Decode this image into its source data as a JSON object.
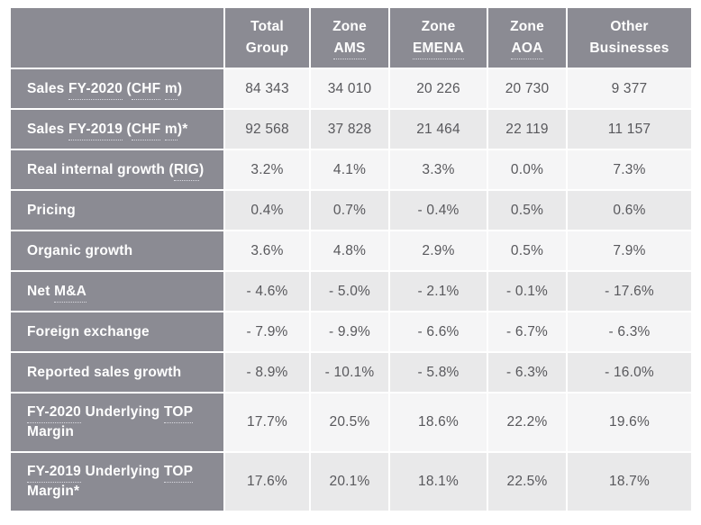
{
  "colors": {
    "header_bg": "#8b8b93",
    "row_light": "#f5f5f6",
    "row_dark": "#e9e9ea",
    "value_text": "#58585c",
    "label_text": "#ffffff",
    "page_bg": "#ffffff",
    "glossary_dots": "#d9d9e0"
  },
  "chart_data": {
    "type": "table",
    "columns": [
      {
        "label": "Total Group",
        "lines": [
          [
            {
              "text": "Total",
              "glossary": false
            }
          ],
          [
            {
              "text": "Group",
              "glossary": false
            }
          ]
        ]
      },
      {
        "label": "Zone AMS",
        "lines": [
          [
            {
              "text": "Zone",
              "glossary": false
            }
          ],
          [
            {
              "text": "AMS",
              "glossary": true
            }
          ]
        ]
      },
      {
        "label": "Zone EMENA",
        "lines": [
          [
            {
              "text": "Zone",
              "glossary": false
            }
          ],
          [
            {
              "text": "EMENA",
              "glossary": true
            }
          ]
        ]
      },
      {
        "label": "Zone AOA",
        "lines": [
          [
            {
              "text": "Zone",
              "glossary": false
            }
          ],
          [
            {
              "text": "AOA",
              "glossary": true
            }
          ]
        ]
      },
      {
        "label": "Other Businesses",
        "lines": [
          [
            {
              "text": "Other",
              "glossary": false
            }
          ],
          [
            {
              "text": "Businesses",
              "glossary": false
            }
          ]
        ]
      }
    ],
    "rows": [
      {
        "label": "Sales FY-2020 (CHF m)",
        "label_parts": [
          {
            "text": "Sales ",
            "glossary": false
          },
          {
            "text": "FY-2020",
            "glossary": true
          },
          {
            "text": " (",
            "glossary": false
          },
          {
            "text": "CHF",
            "glossary": true
          },
          {
            "text": " ",
            "glossary": false
          },
          {
            "text": "m",
            "glossary": true
          },
          {
            "text": ")",
            "glossary": false
          }
        ],
        "values": [
          "84 343",
          "34 010",
          "20 226",
          "20 730",
          "9 377"
        ]
      },
      {
        "label": "Sales FY-2019 (CHF m)*",
        "label_parts": [
          {
            "text": "Sales ",
            "glossary": false
          },
          {
            "text": "FY-2019",
            "glossary": true
          },
          {
            "text": " (",
            "glossary": false
          },
          {
            "text": "CHF",
            "glossary": true
          },
          {
            "text": " ",
            "glossary": false
          },
          {
            "text": "m",
            "glossary": true
          },
          {
            "text": ")*",
            "glossary": false
          }
        ],
        "values": [
          "92 568",
          "37 828",
          "21 464",
          "22 119",
          "11 157"
        ]
      },
      {
        "label": "Real internal growth (RIG)",
        "label_parts": [
          {
            "text": "Real internal growth (",
            "glossary": false
          },
          {
            "text": "RIG",
            "glossary": true
          },
          {
            "text": ")",
            "glossary": false
          }
        ],
        "values": [
          "3.2%",
          "4.1%",
          "3.3%",
          "0.0%",
          "7.3%"
        ]
      },
      {
        "label": "Pricing",
        "label_parts": [
          {
            "text": "Pricing",
            "glossary": false
          }
        ],
        "values": [
          "0.4%",
          "0.7%",
          "- 0.4%",
          "0.5%",
          "0.6%"
        ]
      },
      {
        "label": "Organic growth",
        "label_parts": [
          {
            "text": "Organic growth",
            "glossary": false
          }
        ],
        "values": [
          "3.6%",
          "4.8%",
          "2.9%",
          "0.5%",
          "7.9%"
        ]
      },
      {
        "label": "Net M&A",
        "label_parts": [
          {
            "text": "Net ",
            "glossary": false
          },
          {
            "text": "M&A",
            "glossary": true
          }
        ],
        "values": [
          "- 4.6%",
          "- 5.0%",
          "- 2.1%",
          "- 0.1%",
          "- 17.6%"
        ]
      },
      {
        "label": "Foreign exchange",
        "label_parts": [
          {
            "text": "Foreign exchange",
            "glossary": false
          }
        ],
        "values": [
          "- 7.9%",
          "- 9.9%",
          "- 6.6%",
          "- 6.7%",
          "- 6.3%"
        ]
      },
      {
        "label": "Reported sales growth",
        "label_parts": [
          {
            "text": "Reported sales growth",
            "glossary": false
          }
        ],
        "values": [
          "- 8.9%",
          "- 10.1%",
          "- 5.8%",
          "- 6.3%",
          "- 16.0%"
        ]
      },
      {
        "label": "FY-2020 Underlying TOP Margin",
        "label_parts": [
          {
            "text": "FY-2020",
            "glossary": true
          },
          {
            "text": " Underlying ",
            "glossary": false
          },
          {
            "text": "TOP",
            "glossary": true
          },
          {
            "text": " Margin",
            "glossary": false
          }
        ],
        "values": [
          "17.7%",
          "20.5%",
          "18.6%",
          "22.2%",
          "19.6%"
        ]
      },
      {
        "label": "FY-2019 Underlying TOP Margin*",
        "label_parts": [
          {
            "text": "FY-2019",
            "glossary": true
          },
          {
            "text": " Underlying ",
            "glossary": false
          },
          {
            "text": "TOP",
            "glossary": true
          },
          {
            "text": " Margin*",
            "glossary": false
          }
        ],
        "values": [
          "17.6%",
          "20.1%",
          "18.1%",
          "22.5%",
          "18.7%"
        ]
      }
    ]
  }
}
